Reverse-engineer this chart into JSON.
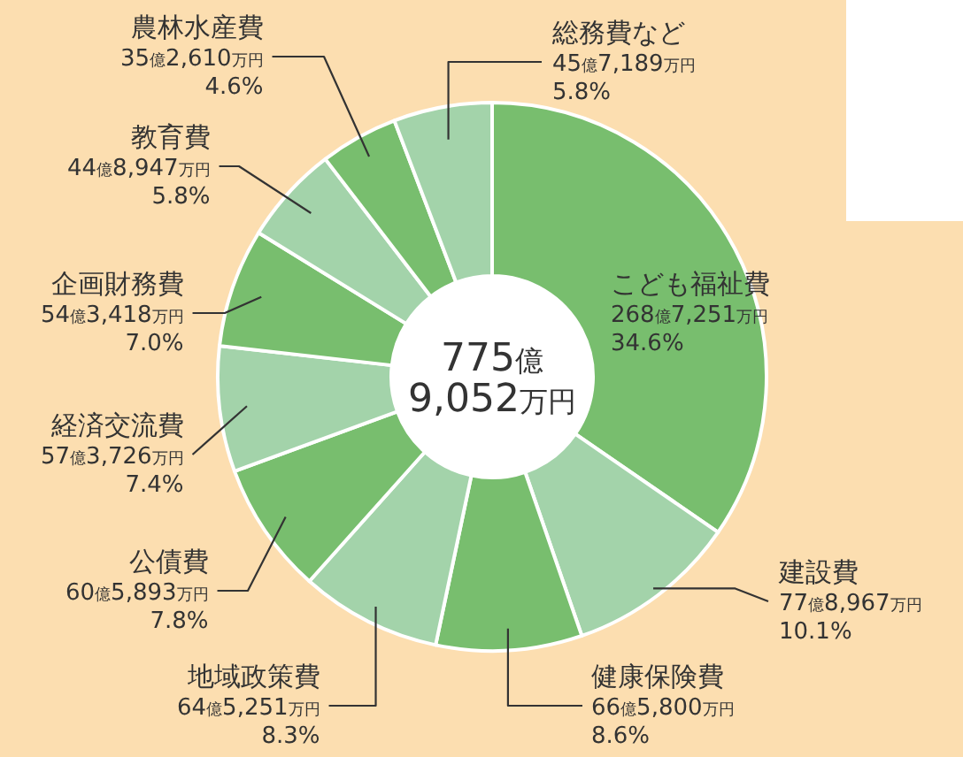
{
  "chart_data": {
    "type": "donut",
    "categories": [
      "こども福祉費",
      "建設費",
      "健康保険費",
      "地域政策費",
      "公債費",
      "経済交流費",
      "企画財務費",
      "教育費",
      "農林水産費",
      "総務費など"
    ],
    "values": [
      34.6,
      10.1,
      8.6,
      8.3,
      7.8,
      7.4,
      7.0,
      5.8,
      4.6,
      5.8
    ],
    "value_labels": [
      "34.6%",
      "10.1%",
      "8.6%",
      "8.3%",
      "7.8%",
      "7.4%",
      "7.0%",
      "5.8%",
      "4.6%",
      "5.8%"
    ],
    "colors": [
      "#78be6e",
      "#a3d3aa",
      "#78be6e",
      "#a3d3aa",
      "#78be6e",
      "#a3d3aa",
      "#78be6e",
      "#a3d3aa",
      "#78be6e",
      "#a3d3aa"
    ],
    "annotations": [
      "775億 9,052万円",
      {
        "text": "268億7,251万円",
        "x": "こども福祉費"
      },
      {
        "text": "77億8,967万円",
        "x": "建設費"
      },
      {
        "text": "66億5,800万円",
        "x": "健康保険費"
      },
      {
        "text": "64億5,251万円",
        "x": "地域政策費"
      },
      {
        "text": "60億5,893万円",
        "x": "公債費"
      },
      {
        "text": "57億3,726万円",
        "x": "経済交流費"
      },
      {
        "text": "54億3,418万円",
        "x": "企画財務費"
      },
      {
        "text": "44億8,947万円",
        "x": "教育費"
      },
      {
        "text": "35億2,610万円",
        "x": "農林水産費"
      },
      {
        "text": "45億7,189万円",
        "x": "総務費など"
      }
    ]
  }
}
